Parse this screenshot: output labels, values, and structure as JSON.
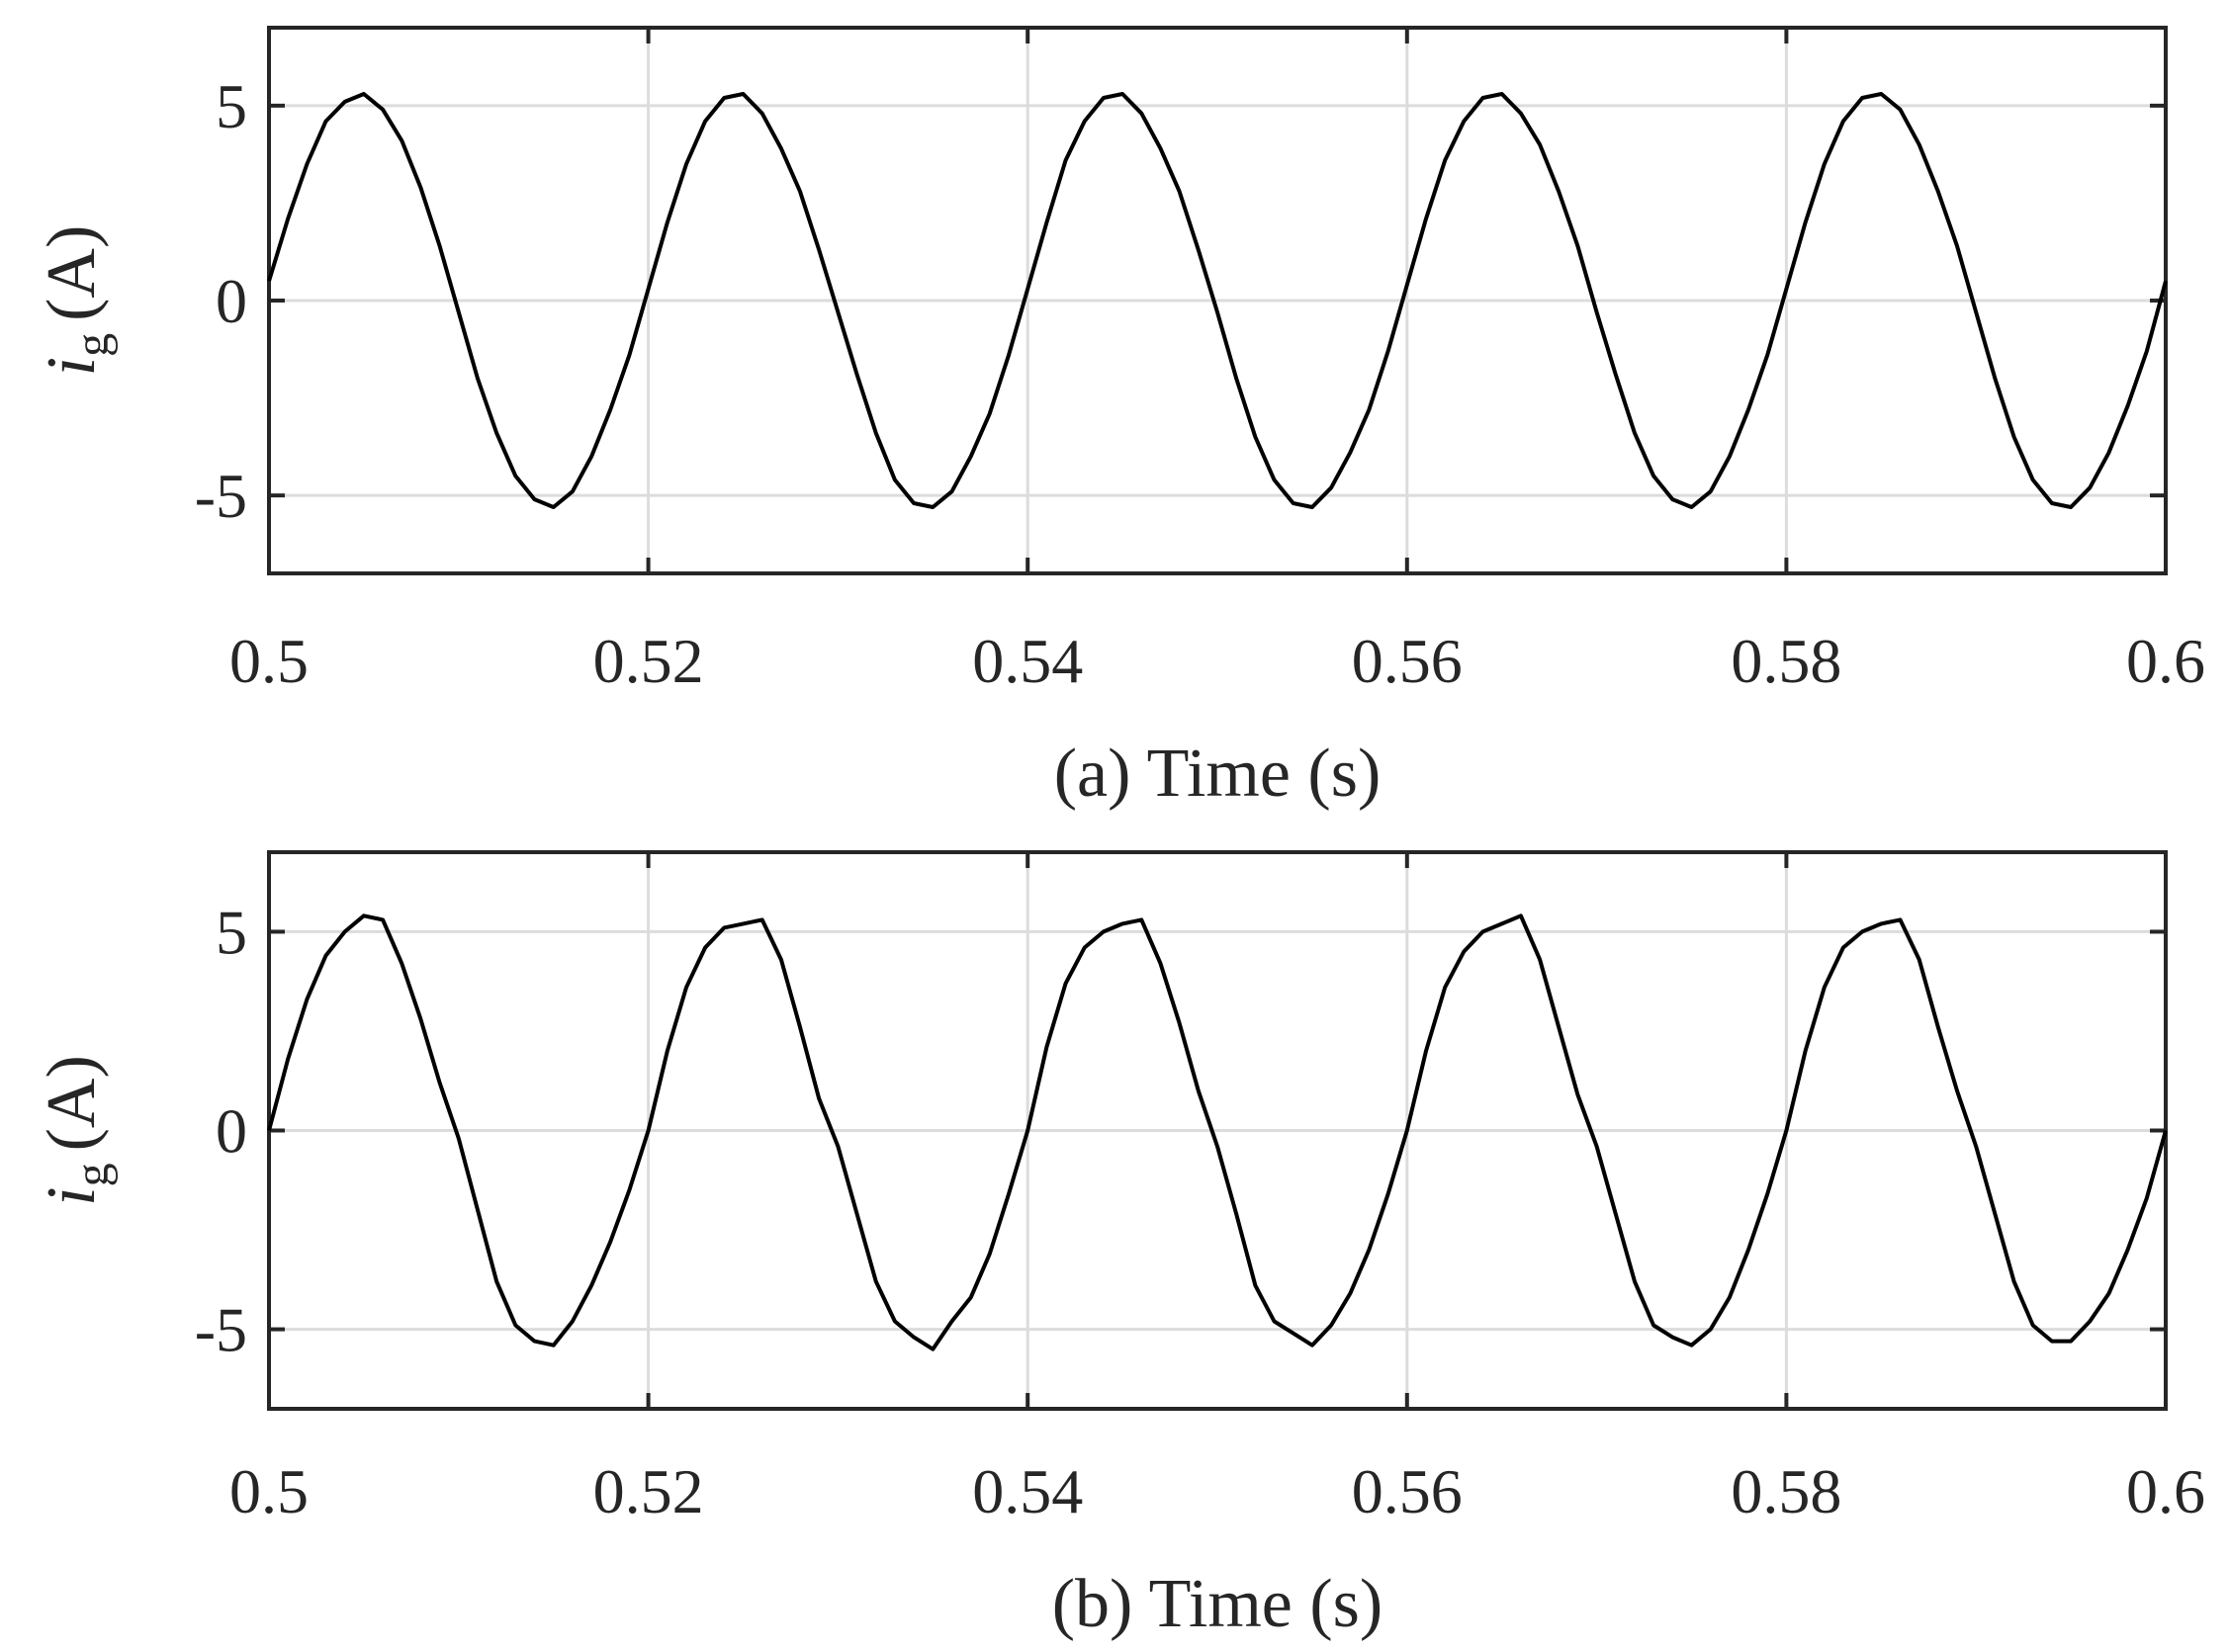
{
  "chart_data": [
    {
      "type": "line",
      "xlabel": "(a) Time (s)",
      "ylabel": {
        "symbol": "i",
        "subscript": "g",
        "unit": "(A)"
      },
      "xlim": [
        0.5,
        0.6
      ],
      "ylim": [
        -7,
        7
      ],
      "xticks": [
        0.5,
        0.52,
        0.54,
        0.56,
        0.58,
        0.6
      ],
      "xtick_labels": [
        "0.5",
        "0.52",
        "0.54",
        "0.56",
        "0.58",
        "0.6"
      ],
      "yticks": [
        -5,
        0,
        5
      ],
      "ytick_labels": [
        "-5",
        "0",
        "5"
      ],
      "grid": true,
      "series": [
        {
          "color": "#000000",
          "x": [
            0.5,
            0.501,
            0.502,
            0.503,
            0.504,
            0.505,
            0.506,
            0.507,
            0.508,
            0.509,
            0.51,
            0.511,
            0.512,
            0.513,
            0.514,
            0.515,
            0.516,
            0.517,
            0.518,
            0.519,
            0.52,
            0.521,
            0.522,
            0.523,
            0.524,
            0.525,
            0.526,
            0.527,
            0.528,
            0.529,
            0.53,
            0.531,
            0.532,
            0.533,
            0.534,
            0.535,
            0.536,
            0.537,
            0.538,
            0.539,
            0.54,
            0.541,
            0.542,
            0.543,
            0.544,
            0.545,
            0.546,
            0.547,
            0.548,
            0.549,
            0.55,
            0.551,
            0.552,
            0.553,
            0.554,
            0.555,
            0.556,
            0.557,
            0.558,
            0.559,
            0.56,
            0.561,
            0.562,
            0.563,
            0.564,
            0.565,
            0.566,
            0.567,
            0.568,
            0.569,
            0.57,
            0.571,
            0.572,
            0.573,
            0.574,
            0.575,
            0.576,
            0.577,
            0.578,
            0.579,
            0.58,
            0.581,
            0.582,
            0.583,
            0.584,
            0.585,
            0.586,
            0.587,
            0.588,
            0.589,
            0.59,
            0.591,
            0.592,
            0.593,
            0.594,
            0.595,
            0.596,
            0.597,
            0.598,
            0.599,
            0.6
          ],
          "y": [
            0.5,
            2.1,
            3.5,
            4.6,
            5.1,
            5.3,
            4.9,
            4.1,
            2.9,
            1.4,
            -0.3,
            -2.0,
            -3.4,
            -4.5,
            -5.1,
            -5.3,
            -4.9,
            -4.0,
            -2.8,
            -1.4,
            0.3,
            2.0,
            3.5,
            4.6,
            5.2,
            5.3,
            4.8,
            3.9,
            2.8,
            1.3,
            -0.3,
            -1.9,
            -3.4,
            -4.6,
            -5.2,
            -5.3,
            -4.9,
            -4.0,
            -2.9,
            -1.4,
            0.3,
            2.0,
            3.6,
            4.6,
            5.2,
            5.3,
            4.8,
            3.9,
            2.8,
            1.3,
            -0.3,
            -2.0,
            -3.5,
            -4.6,
            -5.2,
            -5.3,
            -4.8,
            -3.9,
            -2.8,
            -1.3,
            0.4,
            2.1,
            3.6,
            4.6,
            5.2,
            5.3,
            4.8,
            4.0,
            2.8,
            1.4,
            -0.3,
            -1.9,
            -3.4,
            -4.5,
            -5.1,
            -5.3,
            -4.9,
            -4.0,
            -2.8,
            -1.4,
            0.3,
            2.0,
            3.5,
            4.6,
            5.2,
            5.3,
            4.9,
            4.0,
            2.8,
            1.4,
            -0.3,
            -2.0,
            -3.5,
            -4.6,
            -5.2,
            -5.3,
            -4.8,
            -3.9,
            -2.7,
            -1.3,
            0.5
          ]
        }
      ]
    },
    {
      "type": "line",
      "xlabel": "(b) Time (s)",
      "ylabel": {
        "symbol": "i",
        "subscript": "g",
        "unit": "(A)"
      },
      "xlim": [
        0.5,
        0.6
      ],
      "ylim": [
        -7,
        7
      ],
      "xticks": [
        0.5,
        0.52,
        0.54,
        0.56,
        0.58,
        0.6
      ],
      "xtick_labels": [
        "0.5",
        "0.52",
        "0.54",
        "0.56",
        "0.58",
        "0.6"
      ],
      "yticks": [
        -5,
        0,
        5
      ],
      "ytick_labels": [
        "-5",
        "0",
        "5"
      ],
      "grid": true,
      "series": [
        {
          "color": "#000000",
          "x": [
            0.5,
            0.501,
            0.502,
            0.503,
            0.504,
            0.505,
            0.506,
            0.507,
            0.508,
            0.509,
            0.51,
            0.511,
            0.512,
            0.513,
            0.514,
            0.515,
            0.516,
            0.517,
            0.518,
            0.519,
            0.52,
            0.521,
            0.522,
            0.523,
            0.524,
            0.525,
            0.526,
            0.527,
            0.528,
            0.529,
            0.53,
            0.531,
            0.532,
            0.533,
            0.534,
            0.535,
            0.536,
            0.537,
            0.538,
            0.539,
            0.54,
            0.541,
            0.542,
            0.543,
            0.544,
            0.545,
            0.546,
            0.547,
            0.548,
            0.549,
            0.55,
            0.551,
            0.552,
            0.553,
            0.554,
            0.555,
            0.556,
            0.557,
            0.558,
            0.559,
            0.56,
            0.561,
            0.562,
            0.563,
            0.564,
            0.565,
            0.566,
            0.567,
            0.568,
            0.569,
            0.57,
            0.571,
            0.572,
            0.573,
            0.574,
            0.575,
            0.576,
            0.577,
            0.578,
            0.579,
            0.58,
            0.581,
            0.582,
            0.583,
            0.584,
            0.585,
            0.586,
            0.587,
            0.588,
            0.589,
            0.59,
            0.591,
            0.592,
            0.593,
            0.594,
            0.595,
            0.596,
            0.597,
            0.598,
            0.599,
            0.6
          ],
          "y": [
            0.0,
            1.8,
            3.3,
            4.4,
            5.0,
            5.4,
            5.3,
            4.2,
            2.8,
            1.2,
            -0.2,
            -2.0,
            -3.8,
            -4.9,
            -5.3,
            -5.4,
            -4.8,
            -3.9,
            -2.8,
            -1.5,
            0.0,
            2.0,
            3.6,
            4.6,
            5.1,
            5.2,
            5.3,
            4.3,
            2.6,
            0.8,
            -0.4,
            -2.1,
            -3.8,
            -4.8,
            -5.2,
            -5.5,
            -4.8,
            -4.2,
            -3.1,
            -1.6,
            0.0,
            2.1,
            3.7,
            4.6,
            5.0,
            5.2,
            5.3,
            4.2,
            2.7,
            1.0,
            -0.4,
            -2.1,
            -3.9,
            -4.8,
            -5.1,
            -5.4,
            -4.9,
            -4.1,
            -3.0,
            -1.6,
            0.0,
            2.0,
            3.6,
            4.5,
            5.0,
            5.2,
            5.4,
            4.3,
            2.6,
            0.9,
            -0.4,
            -2.1,
            -3.8,
            -4.9,
            -5.2,
            -5.4,
            -5.0,
            -4.2,
            -3.0,
            -1.6,
            0.0,
            2.0,
            3.6,
            4.6,
            5.0,
            5.2,
            5.3,
            4.3,
            2.6,
            1.0,
            -0.4,
            -2.1,
            -3.8,
            -4.9,
            -5.3,
            -5.3,
            -4.8,
            -4.1,
            -3.0,
            -1.7,
            0.0
          ]
        }
      ]
    }
  ]
}
